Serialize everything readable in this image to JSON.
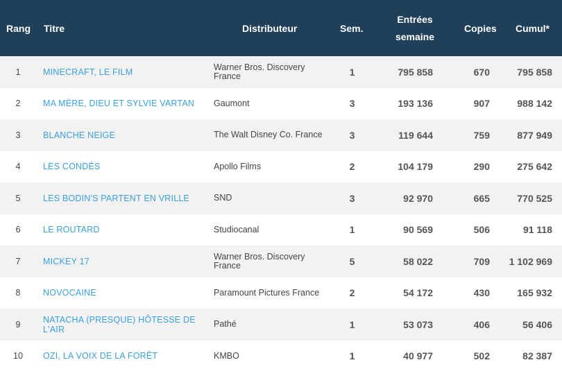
{
  "header": {
    "rang": "Rang",
    "titre": "Titre",
    "distributeur": "Distributeur",
    "sem": "Sem.",
    "entrees_line1": "Entrées",
    "entrees_line2": "semaine",
    "copies": "Copies",
    "cumul": "Cumul*"
  },
  "rows": [
    {
      "rang": "1",
      "titre": "MINECRAFT, LE FILM",
      "distributeur": "Warner Bros. Discovery France",
      "sem": "1",
      "entrees": "795 858",
      "copies": "670",
      "cumul": "795 858"
    },
    {
      "rang": "2",
      "titre": "MA MÈRE, DIEU ET SYLVIE VARTAN",
      "distributeur": "Gaumont",
      "sem": "3",
      "entrees": "193 136",
      "copies": "907",
      "cumul": "988 142"
    },
    {
      "rang": "3",
      "titre": "BLANCHE NEIGE",
      "distributeur": "The Walt Disney Co. France",
      "sem": "3",
      "entrees": "119 644",
      "copies": "759",
      "cumul": "877 949"
    },
    {
      "rang": "4",
      "titre": "LES CONDÉS",
      "distributeur": "Apollo Films",
      "sem": "2",
      "entrees": "104 179",
      "copies": "290",
      "cumul": "275 642"
    },
    {
      "rang": "5",
      "titre": "LES BODIN'S PARTENT EN VRILLE",
      "distributeur": "SND",
      "sem": "3",
      "entrees": "92 970",
      "copies": "665",
      "cumul": "770 525"
    },
    {
      "rang": "6",
      "titre": "LE ROUTARD",
      "distributeur": "Studiocanal",
      "sem": "1",
      "entrees": "90 569",
      "copies": "506",
      "cumul": "91 118"
    },
    {
      "rang": "7",
      "titre": "MICKEY 17",
      "distributeur": "Warner Bros. Discovery France",
      "sem": "5",
      "entrees": "58 022",
      "copies": "709",
      "cumul": "1 102 969"
    },
    {
      "rang": "8",
      "titre": "NOVOCAINE",
      "distributeur": "Paramount Pictures France",
      "sem": "2",
      "entrees": "54 172",
      "copies": "430",
      "cumul": "165 932"
    },
    {
      "rang": "9",
      "titre": "NATACHA (PRESQUE) HÔTESSE DE L'AIR",
      "distributeur": "Pathé",
      "sem": "1",
      "entrees": "53 073",
      "copies": "406",
      "cumul": "56 406"
    },
    {
      "rang": "10",
      "titre": "OZI, LA VOIX DE LA FORÊT",
      "distributeur": "KMBO",
      "sem": "1",
      "entrees": "40 977",
      "copies": "502",
      "cumul": "82 387"
    }
  ],
  "colors": {
    "header_bg": "#1f4058",
    "title_link": "#3aa0de",
    "row_alt": "#f2f2f2"
  }
}
